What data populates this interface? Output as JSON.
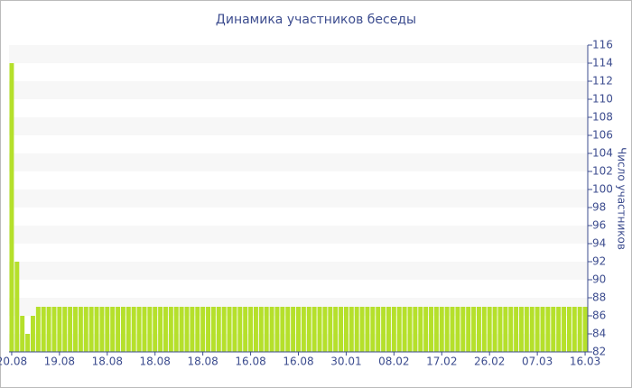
{
  "chart_data": {
    "type": "bar",
    "title": "Динамика участников беседы",
    "y_axis_label": "Число участников",
    "color": "#b5e02b",
    "categories": [
      "20.08",
      null,
      null,
      null,
      null,
      null,
      null,
      null,
      null,
      "19.08",
      null,
      null,
      null,
      null,
      null,
      null,
      null,
      null,
      "18.08",
      null,
      null,
      null,
      null,
      null,
      null,
      null,
      null,
      "18.08",
      null,
      null,
      null,
      null,
      null,
      null,
      null,
      null,
      "18.08",
      null,
      null,
      null,
      null,
      null,
      null,
      null,
      null,
      "16.08",
      null,
      null,
      null,
      null,
      null,
      null,
      null,
      null,
      "16.08",
      null,
      null,
      null,
      null,
      null,
      null,
      null,
      null,
      "30.01",
      null,
      null,
      null,
      null,
      null,
      null,
      null,
      null,
      "08.02",
      null,
      null,
      null,
      null,
      null,
      null,
      null,
      null,
      "17.02",
      null,
      null,
      null,
      null,
      null,
      null,
      null,
      null,
      "26.02",
      null,
      null,
      null,
      null,
      null,
      null,
      null,
      null,
      "07.03",
      null,
      null,
      null,
      null,
      null,
      null,
      null,
      null,
      "16.03"
    ],
    "values": [
      114,
      92,
      86,
      84,
      86,
      87,
      87,
      87,
      87,
      87,
      87,
      87,
      87,
      87,
      87,
      87,
      87,
      87,
      87,
      87,
      87,
      87,
      87,
      87,
      87,
      87,
      87,
      87,
      87,
      87,
      87,
      87,
      87,
      87,
      87,
      87,
      87,
      87,
      87,
      87,
      87,
      87,
      87,
      87,
      87,
      87,
      87,
      87,
      87,
      87,
      87,
      87,
      87,
      87,
      87,
      87,
      87,
      87,
      87,
      87,
      87,
      87,
      87,
      87,
      87,
      87,
      87,
      87,
      87,
      87,
      87,
      87,
      87,
      87,
      87,
      87,
      87,
      87,
      87,
      87,
      87,
      87,
      87,
      87,
      87,
      87,
      87,
      87,
      87,
      87,
      87,
      87,
      87,
      87,
      87,
      87,
      87,
      87,
      87,
      87,
      87,
      87,
      87,
      87,
      87,
      87,
      87,
      87,
      87
    ],
    "ylim": [
      82,
      116
    ],
    "yticks": [
      82,
      84,
      86,
      88,
      90,
      92,
      94,
      96,
      98,
      100,
      102,
      104,
      106,
      108,
      110,
      112,
      114,
      116
    ],
    "grid": true
  }
}
